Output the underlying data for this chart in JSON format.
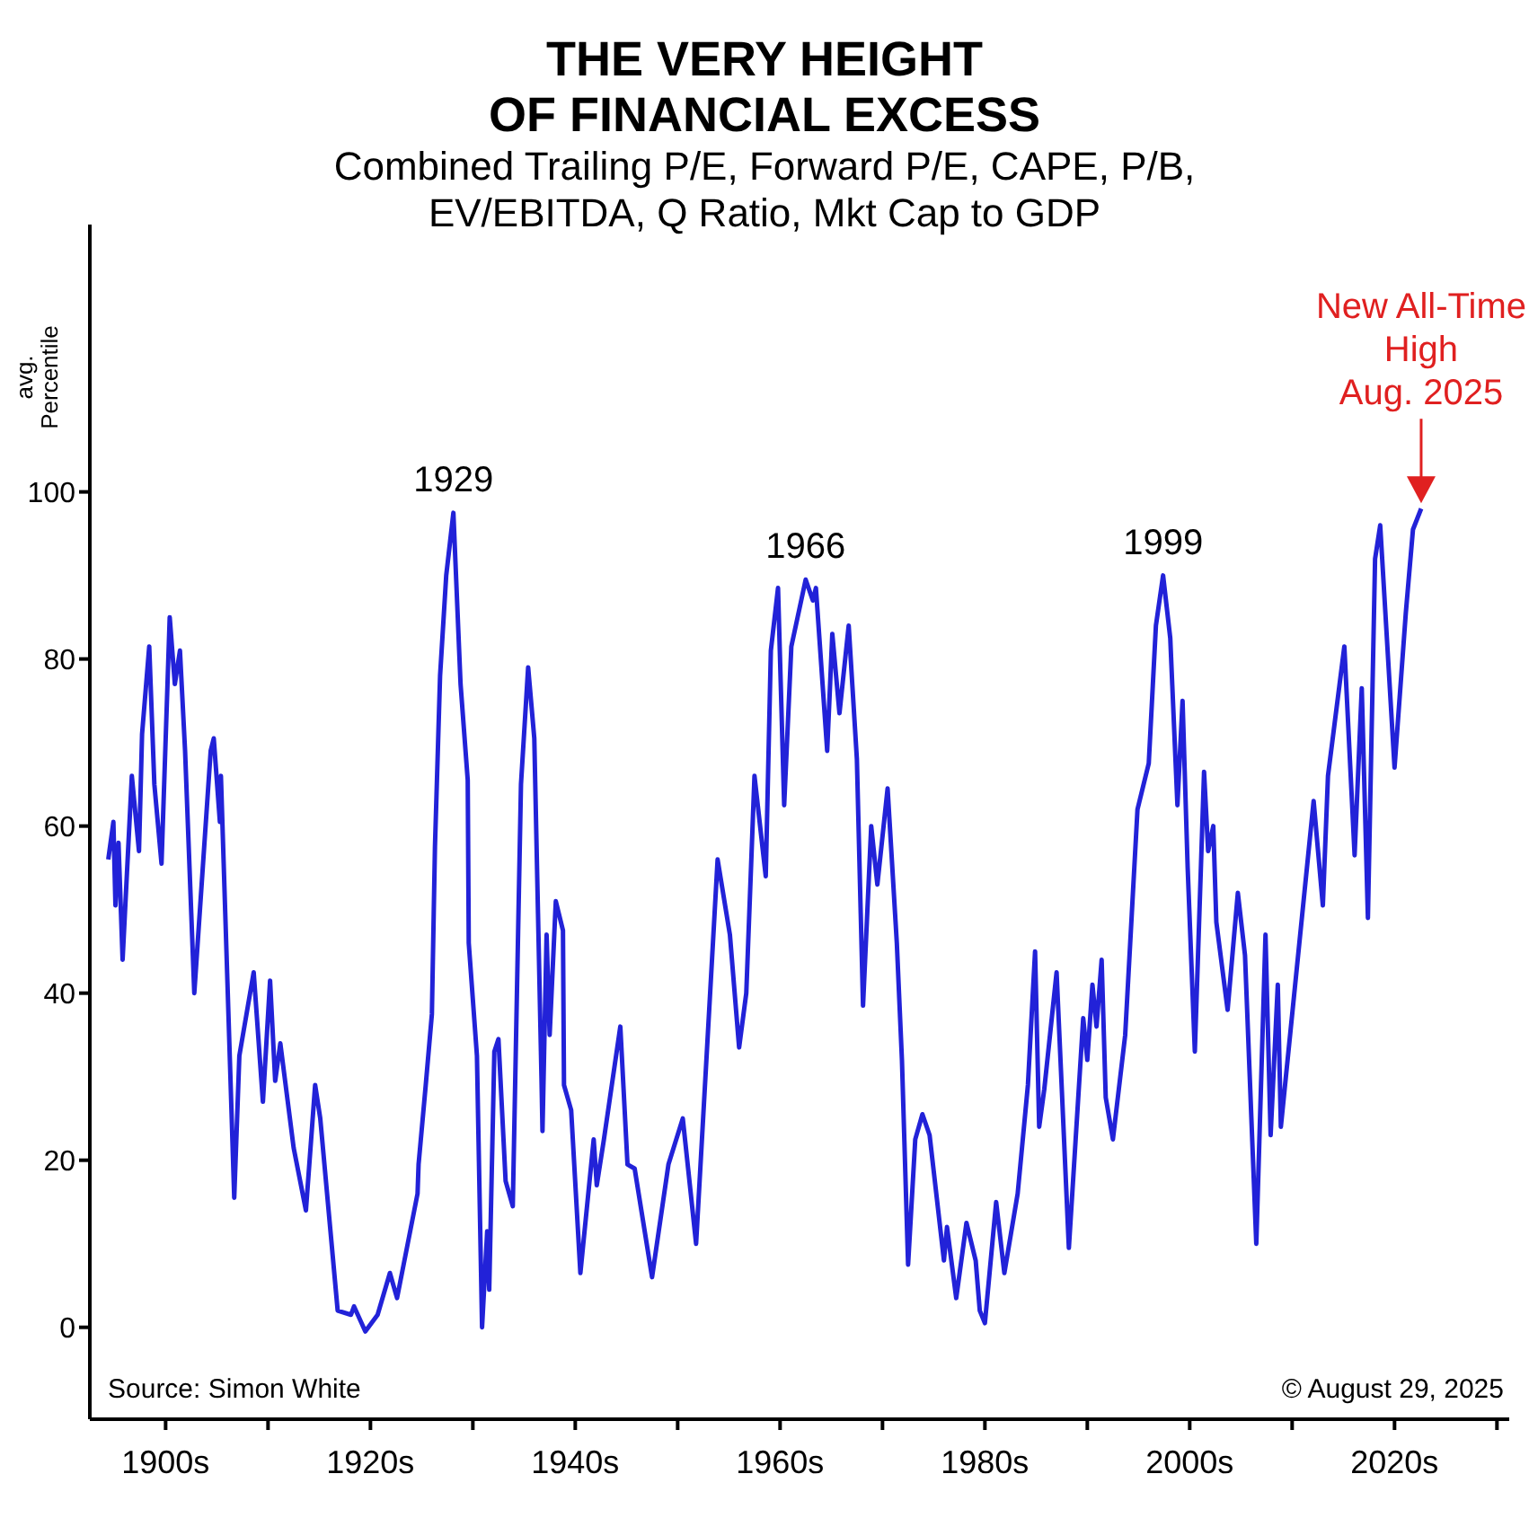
{
  "chart_data": {
    "type": "line",
    "title": "THE VERY HEIGHT OF FINANCIAL EXCESS",
    "subtitle": "Combined Trailing P/E, Forward P/E, CAPE, P/B, EV/EBITDA, Q Ratio, Mkt Cap to GDP",
    "ylabel": "avg. Percentile",
    "x": [
      1894.4,
      1894.9,
      1895.1,
      1895.4,
      1895.8,
      1896.7,
      1897.4,
      1897.7,
      1898.4,
      1898.9,
      1899.6,
      1900.4,
      1900.9,
      1901.4,
      1901.9,
      1902.8,
      1904.4,
      1904.7,
      1905.3,
      1905.4,
      1906.7,
      1907.2,
      1908.6,
      1909.5,
      1910.2,
      1910.7,
      1911.2,
      1912.5,
      1913.7,
      1914.6,
      1915.1,
      1916.8,
      1918.1,
      1918.4,
      1919.5,
      1920.7,
      1921.9,
      1922.6,
      1924.6,
      1924.7,
      1925.4,
      1926.0,
      1926.3,
      1926.8,
      1927.4,
      1928.1,
      1928.8,
      1929.5,
      1929.6,
      1930.4,
      1930.9,
      1931.4,
      1931.6,
      1932.1,
      1932.5,
      1933.2,
      1933.9,
      1934.7,
      1935.4,
      1936.0,
      1936.7,
      1936.8,
      1937.2,
      1937.5,
      1938.1,
      1938.8,
      1938.9,
      1939.6,
      1940.5,
      1941.8,
      1942.1,
      1942.8,
      1944.4,
      1945.1,
      1945.8,
      1947.5,
      1949.1,
      1950.5,
      1951.8,
      1953.9,
      1955.1,
      1956.0,
      1956.7,
      1957.5,
      1958.6,
      1959.1,
      1959.8,
      1960.4,
      1961.1,
      1962.5,
      1963.2,
      1963.5,
      1964.6,
      1965.1,
      1965.8,
      1966.7,
      1967.5,
      1968.1,
      1968.9,
      1969.5,
      1970.5,
      1971.4,
      1971.9,
      1972.5,
      1973.2,
      1973.9,
      1974.6,
      1976.0,
      1976.3,
      1977.2,
      1978.2,
      1979.1,
      1979.5,
      1980.0,
      1981.1,
      1981.9,
      1983.2,
      1984.2,
      1984.9,
      1985.3,
      1985.8,
      1987.0,
      1988.2,
      1989.6,
      1990.0,
      1990.5,
      1990.9,
      1991.4,
      1991.8,
      1992.5,
      1993.7,
      1994.9,
      1996.0,
      1996.7,
      1997.4,
      1998.1,
      1998.8,
      1999.3,
      1999.8,
      2000.5,
      2001.4,
      2001.8,
      2002.3,
      2002.6,
      2003.7,
      2004.7,
      2005.4,
      2006.5,
      2007.4,
      2007.9,
      2008.6,
      2008.9,
      2012.1,
      2013.0,
      2013.5,
      2015.1,
      2016.1,
      2016.8,
      2017.4,
      2018.1,
      2018.6,
      2020.0,
      2021.1,
      2021.8,
      2022.6
    ],
    "series": [
      {
        "color": "#2222d8",
        "values": [
          56,
          60.5,
          50.5,
          58,
          44,
          66,
          57,
          71,
          81.5,
          65,
          55.5,
          85,
          77,
          81,
          69,
          40,
          69,
          70.5,
          60.5,
          66,
          15.5,
          32.5,
          42.5,
          27,
          41.5,
          29.5,
          34,
          21.5,
          14,
          29,
          25,
          2,
          1.5,
          2.5,
          -0.5,
          1.5,
          6.5,
          3.5,
          16,
          19.5,
          29,
          37.5,
          57.5,
          78,
          90,
          97.5,
          77,
          65.5,
          46,
          32.5,
          0,
          11.5,
          4.5,
          33,
          34.5,
          17.5,
          14.5,
          65,
          79,
          70.5,
          30,
          23.5,
          47,
          35,
          51,
          47.5,
          29,
          26,
          6.5,
          22.5,
          17,
          22.5,
          36,
          19.5,
          19,
          6,
          19.5,
          25,
          10,
          56,
          47,
          33.5,
          40,
          66,
          54,
          81,
          88.5,
          62.5,
          81.5,
          89.5,
          87,
          88.5,
          69,
          83,
          73.5,
          84,
          68,
          38.5,
          60,
          53,
          64.5,
          46,
          32,
          7.5,
          22.5,
          25.5,
          23,
          8,
          12,
          3.5,
          12.5,
          8,
          2,
          0.5,
          15,
          6.5,
          16,
          29,
          45,
          24,
          28.5,
          42.5,
          9.5,
          37,
          32,
          41,
          36,
          44,
          27.5,
          22.5,
          35,
          62,
          67.5,
          84,
          90,
          82.5,
          62.5,
          75,
          55,
          33,
          66.5,
          57,
          60,
          48.5,
          38,
          52,
          44.5,
          10,
          47,
          23,
          41,
          24,
          63,
          50.5,
          66,
          81.5,
          56.5,
          76.5,
          49,
          92,
          96,
          67,
          85.5,
          95.5,
          98
        ]
      }
    ],
    "xlim": [
      1892.6,
      2031.2
    ],
    "xticks": [
      {
        "value": 1900,
        "label": "1900s"
      },
      {
        "value": 1910,
        "label": null
      },
      {
        "value": 1920,
        "label": "1920s"
      },
      {
        "value": 1930,
        "label": null
      },
      {
        "value": 1940,
        "label": "1940s"
      },
      {
        "value": 1950,
        "label": null
      },
      {
        "value": 1960,
        "label": "1960s"
      },
      {
        "value": 1970,
        "label": null
      },
      {
        "value": 1980,
        "label": "1980s"
      },
      {
        "value": 1990,
        "label": null
      },
      {
        "value": 2000,
        "label": "2000s"
      },
      {
        "value": 2010,
        "label": null
      },
      {
        "value": 2020,
        "label": "2020s"
      },
      {
        "value": 2030,
        "label": null
      }
    ],
    "ylim": [
      -11,
      132
    ],
    "yticks": [
      0,
      20,
      40,
      60,
      80,
      100
    ],
    "annotations": [
      {
        "text": "1929",
        "x": 1928.1,
        "y": 97.5
      },
      {
        "text": "1966",
        "x": 1962.5,
        "y": 89.5
      },
      {
        "text": "1999",
        "x": 1997.4,
        "y": 90
      },
      {
        "text": "New All-Time High Aug. 2025",
        "x": 2022.6,
        "y": 98
      },
      "Source: Simon White",
      "© August 29, 2025"
    ]
  }
}
